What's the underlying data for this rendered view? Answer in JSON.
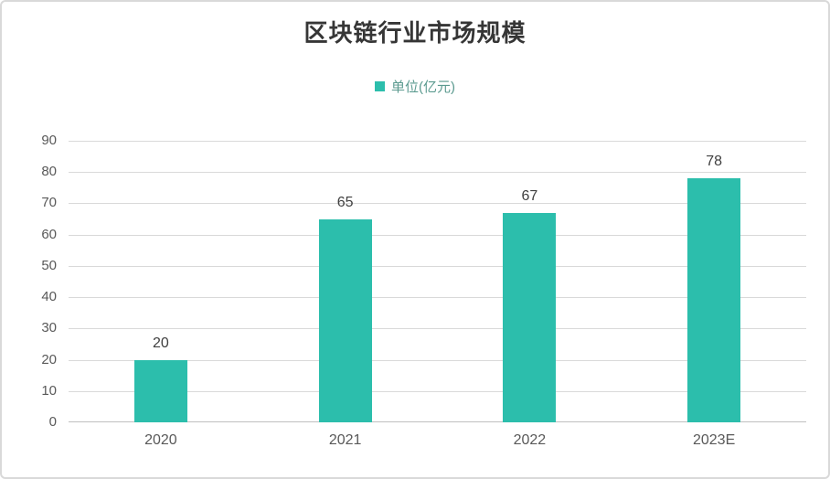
{
  "chart_data": {
    "type": "bar",
    "title": "区块链行业市场规模",
    "legend": "单位(亿元)",
    "legend_position": "top",
    "categories": [
      "2020",
      "2021",
      "2022",
      "2023E"
    ],
    "values": [
      20,
      65,
      67,
      78
    ],
    "data_labels": [
      "20",
      "65",
      "67",
      "78"
    ],
    "xlabel": "",
    "ylabel": "",
    "ylim": [
      0,
      90
    ],
    "ytick_step": 10,
    "yticks": [
      0,
      10,
      20,
      30,
      40,
      50,
      60,
      70,
      80,
      90
    ],
    "grid": true
  },
  "colors": {
    "accent": "#2CBEAC",
    "gridline": "#d9d9d9",
    "axis_line": "#c0c0c0",
    "tick_text": "#595959",
    "title_text": "#363636",
    "data_label_text": "#404040",
    "legend_text": "#5b9a8f",
    "frame_border": "#d9d9d9",
    "background": "#ffffff"
  }
}
